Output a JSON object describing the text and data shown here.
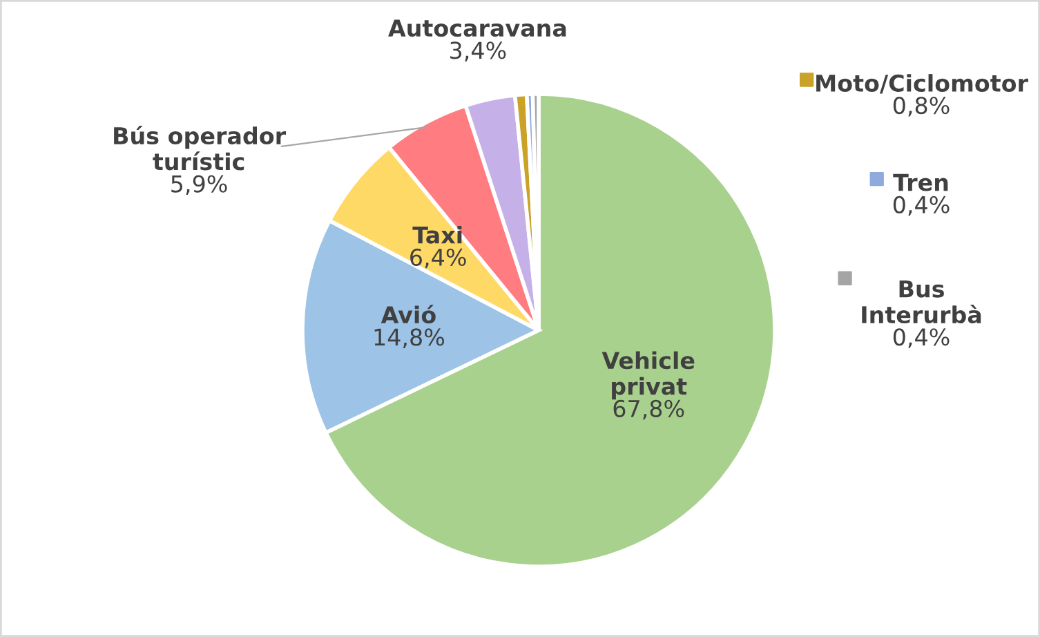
{
  "chart_data": {
    "type": "pie",
    "categories": [
      "Vehicle\nprivat",
      "Avió",
      "Taxi",
      "Bús operador\nturístic",
      "Autocaravana",
      "Moto/Ciclomotor",
      "Tren",
      "Bus\nInterurbà"
    ],
    "values": [
      67.8,
      14.8,
      6.4,
      5.9,
      3.4,
      0.8,
      0.4,
      0.4
    ],
    "colors": [
      "#a9d18e",
      "#9dc3e6",
      "#ffd966",
      "#ff7c80",
      "#c5b0e8",
      "#c9a227",
      "#8faadc",
      "#a5a5a5"
    ],
    "legend": "right",
    "value_labels": [
      "67,8%",
      "14,8%",
      "6,4%",
      "5,9%",
      "3,4%",
      "0,8%",
      "0,4%",
      "0,4%"
    ]
  }
}
